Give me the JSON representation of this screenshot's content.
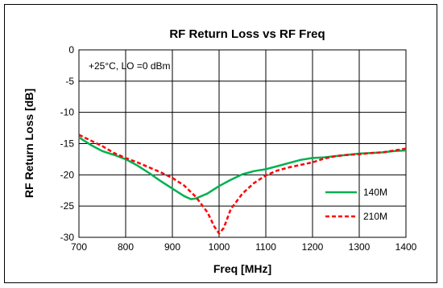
{
  "chart_data": {
    "type": "line",
    "title": "RF Return Loss vs RF Freq",
    "xlabel": "Freq [MHz]",
    "ylabel": "RF Return Loss [dB]",
    "annotation": "+25°C, LO =0 dBm",
    "xlim": [
      700,
      1400
    ],
    "ylim": [
      -30,
      0
    ],
    "xticks": [
      "700",
      "800",
      "900",
      "1000",
      "1100",
      "1200",
      "1300",
      "1400"
    ],
    "yticks": [
      "0",
      "-5",
      "-10",
      "-15",
      "-20",
      "-25",
      "-30"
    ],
    "grid": true,
    "legend_position": "lower-right",
    "series": [
      {
        "name": "140M",
        "color": "#00b050",
        "dash": "solid",
        "x": [
          700,
          725,
          750,
          775,
          800,
          825,
          850,
          875,
          900,
          925,
          940,
          950,
          975,
          1000,
          1025,
          1050,
          1075,
          1100,
          1125,
          1150,
          1175,
          1200,
          1225,
          1250,
          1275,
          1300,
          1325,
          1350,
          1375,
          1400
        ],
        "y": [
          -14.0,
          -15.2,
          -16.2,
          -16.8,
          -17.5,
          -18.5,
          -19.7,
          -21.0,
          -22.2,
          -23.4,
          -23.9,
          -23.8,
          -23.0,
          -21.8,
          -20.8,
          -19.9,
          -19.4,
          -19.1,
          -18.6,
          -18.1,
          -17.6,
          -17.3,
          -17.2,
          -17.0,
          -16.8,
          -16.6,
          -16.5,
          -16.4,
          -16.2,
          -16.1
        ]
      },
      {
        "name": "210M",
        "color": "#ff0000",
        "dash": "dashed",
        "x": [
          700,
          725,
          750,
          775,
          800,
          825,
          850,
          875,
          900,
          925,
          950,
          975,
          990,
          1000,
          1010,
          1025,
          1050,
          1075,
          1100,
          1125,
          1150,
          1175,
          1200,
          1225,
          1250,
          1275,
          1300,
          1325,
          1350,
          1375,
          1400
        ],
        "y": [
          -13.6,
          -14.5,
          -15.4,
          -16.5,
          -17.3,
          -18.0,
          -18.8,
          -19.6,
          -20.5,
          -21.7,
          -23.5,
          -26.0,
          -28.3,
          -29.4,
          -28.5,
          -25.5,
          -23.0,
          -21.3,
          -20.1,
          -19.3,
          -18.8,
          -18.4,
          -18.0,
          -17.4,
          -17.0,
          -16.8,
          -16.7,
          -16.5,
          -16.4,
          -16.1,
          -15.8
        ]
      }
    ]
  }
}
